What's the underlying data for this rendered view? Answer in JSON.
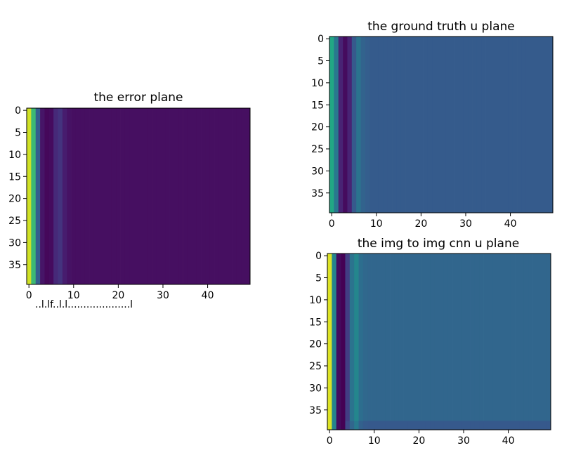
{
  "chart_data": [
    {
      "id": "error",
      "type": "heatmap",
      "title": "the error plane",
      "colormap": "viridis",
      "rows": 40,
      "cols": 50,
      "xticks": [
        0,
        10,
        20,
        30,
        40
      ],
      "yticks": [
        0,
        5,
        10,
        15,
        20,
        25,
        30,
        35
      ],
      "xlim": [
        0,
        49
      ],
      "ylim": [
        0,
        39
      ],
      "column_values": [
        0.93,
        0.68,
        0.3,
        0.06,
        0.02,
        0.03,
        0.12,
        0.15,
        0.08,
        0.05,
        0.04,
        0.04,
        0.04,
        0.04,
        0.04,
        0.04,
        0.04,
        0.04,
        0.04,
        0.04,
        0.04,
        0.04,
        0.04,
        0.04,
        0.04,
        0.04,
        0.04,
        0.04,
        0.04,
        0.04,
        0.04,
        0.04,
        0.04,
        0.04,
        0.04,
        0.04,
        0.04,
        0.04,
        0.04,
        0.04,
        0.04,
        0.04,
        0.04,
        0.04,
        0.04,
        0.04,
        0.04,
        0.04,
        0.04,
        0.04
      ],
      "overlap_text": "..l.lf..l.l....................l"
    },
    {
      "id": "truth",
      "type": "heatmap",
      "title": "the ground truth u plane",
      "colormap": "viridis",
      "rows": 40,
      "cols": 50,
      "xticks": [
        0,
        10,
        20,
        30,
        40
      ],
      "yticks": [
        0,
        5,
        10,
        15,
        20,
        25,
        30,
        35
      ],
      "xlim": [
        0,
        49
      ],
      "ylim": [
        0,
        39
      ],
      "column_values": [
        0.6,
        0.4,
        0.1,
        0.03,
        0.1,
        0.28,
        0.38,
        0.32,
        0.3,
        0.29,
        0.29,
        0.29,
        0.29,
        0.29,
        0.29,
        0.29,
        0.29,
        0.29,
        0.29,
        0.29,
        0.29,
        0.29,
        0.29,
        0.29,
        0.29,
        0.29,
        0.29,
        0.29,
        0.29,
        0.29,
        0.29,
        0.29,
        0.29,
        0.29,
        0.29,
        0.29,
        0.29,
        0.29,
        0.29,
        0.29,
        0.29,
        0.29,
        0.29,
        0.29,
        0.29,
        0.29,
        0.29,
        0.29,
        0.29,
        0.29
      ]
    },
    {
      "id": "cnn",
      "type": "heatmap",
      "title": "the img to img cnn u plane",
      "colormap": "viridis",
      "rows": 40,
      "cols": 50,
      "xticks": [
        0,
        10,
        20,
        30,
        40
      ],
      "yticks": [
        0,
        5,
        10,
        15,
        20,
        25,
        30,
        35
      ],
      "xlim": [
        0,
        49
      ],
      "ylim": [
        0,
        39
      ],
      "column_values": [
        0.95,
        0.45,
        0.03,
        0.0,
        0.18,
        0.38,
        0.46,
        0.36,
        0.34,
        0.33,
        0.33,
        0.33,
        0.33,
        0.33,
        0.33,
        0.33,
        0.33,
        0.33,
        0.33,
        0.33,
        0.33,
        0.33,
        0.33,
        0.33,
        0.33,
        0.33,
        0.33,
        0.33,
        0.33,
        0.33,
        0.33,
        0.33,
        0.33,
        0.33,
        0.33,
        0.33,
        0.33,
        0.33,
        0.33,
        0.33,
        0.33,
        0.33,
        0.33,
        0.33,
        0.33,
        0.33,
        0.33,
        0.33,
        0.33,
        0.33
      ]
    }
  ]
}
